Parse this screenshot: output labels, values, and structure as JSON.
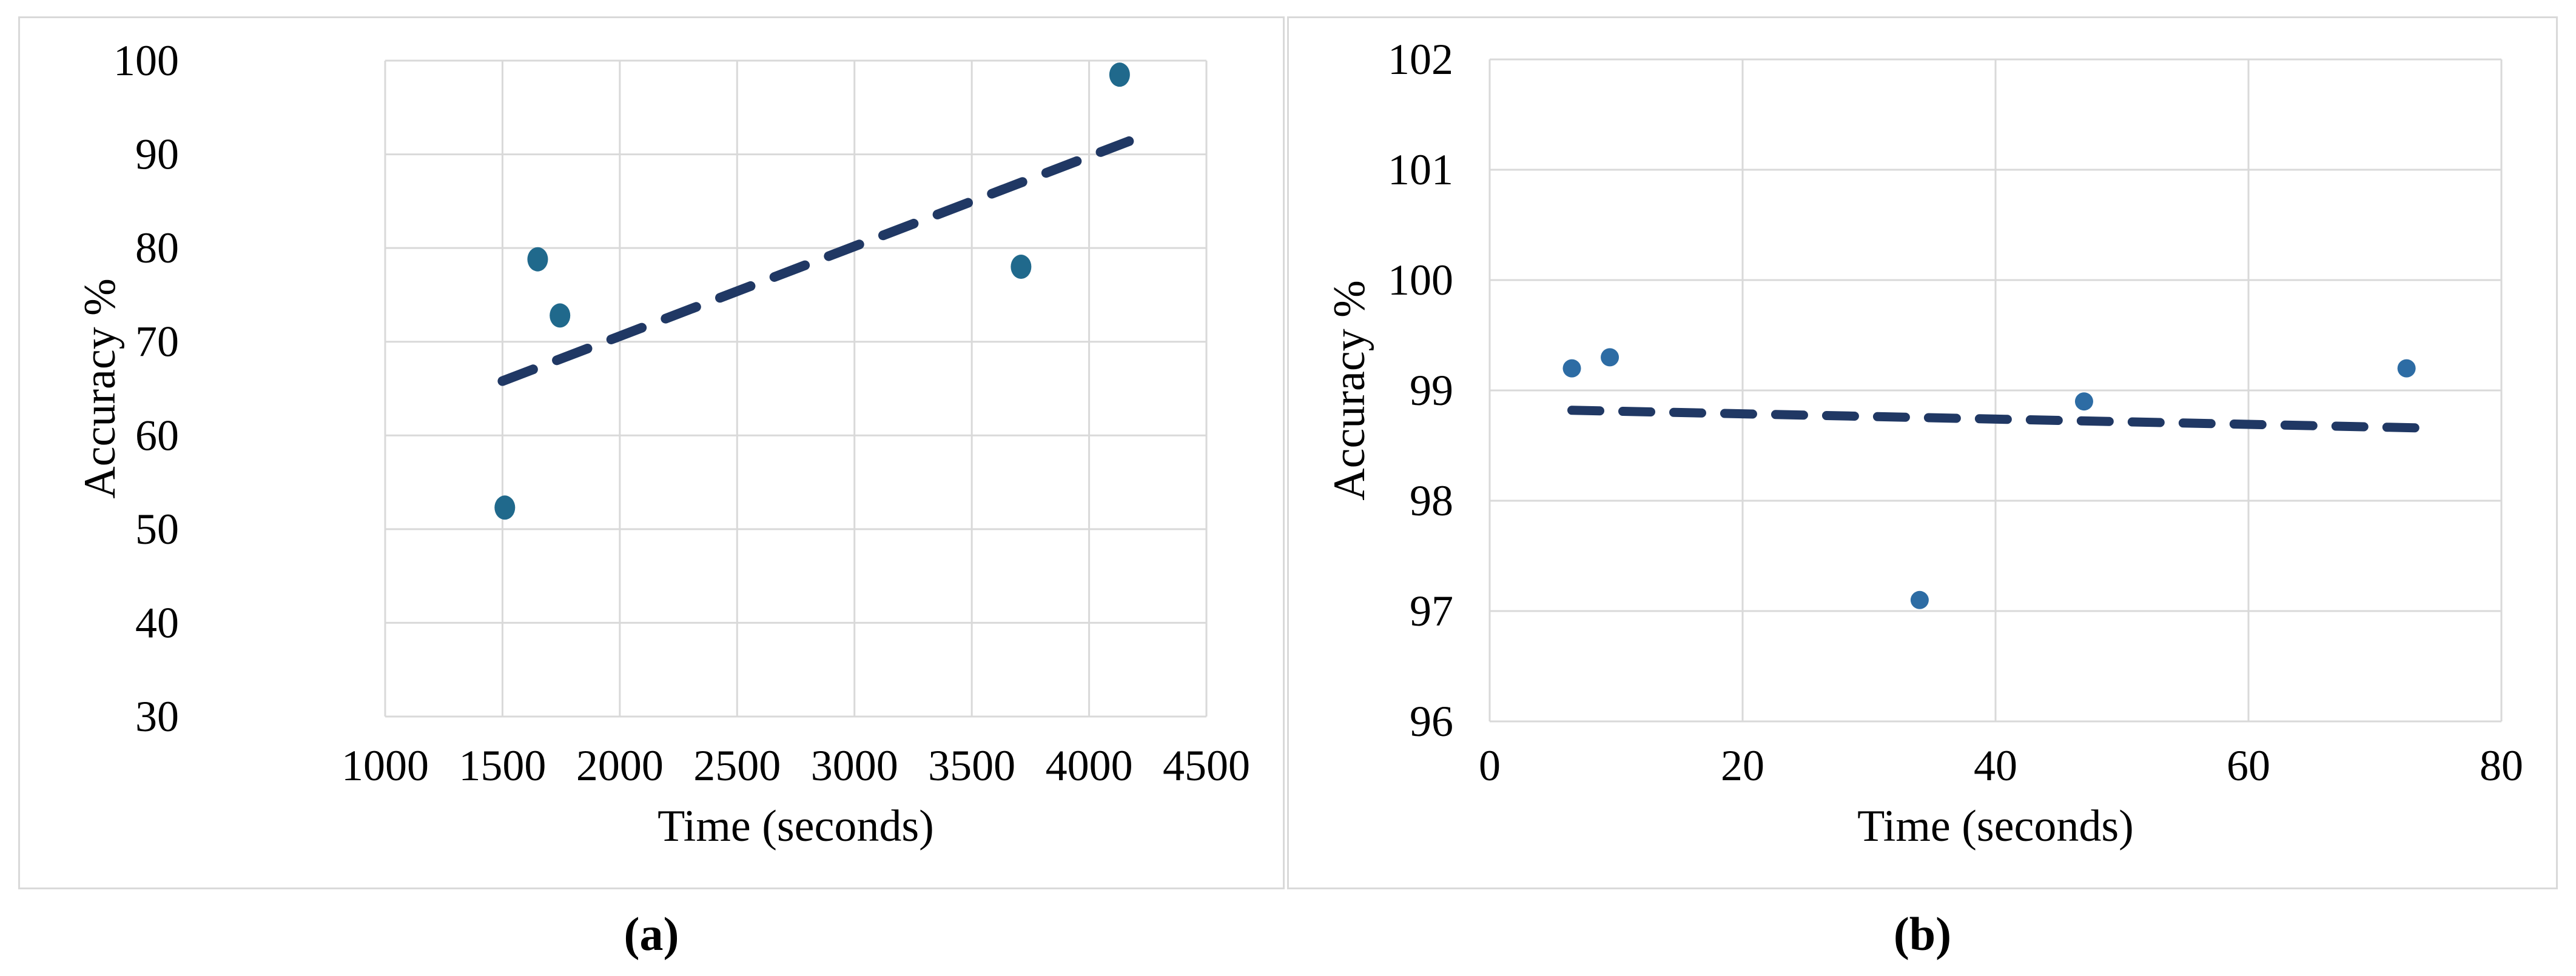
{
  "figure": {
    "background": "#ffffff",
    "panel_border_color": "#d9d9d9",
    "grid_color": "#d9d9d9",
    "text_color": "#000000",
    "caption_a": "(a)",
    "caption_b": "(b)"
  },
  "chart_data": [
    {
      "id": "a",
      "type": "scatter",
      "caption": "(a)",
      "title": "",
      "xlabel": "Time (seconds)",
      "ylabel": "Accuracy %",
      "xlim": [
        1000,
        4500
      ],
      "ylim": [
        30,
        100
      ],
      "xticks": [
        1000,
        1500,
        2000,
        2500,
        3000,
        3500,
        4000,
        4500
      ],
      "yticks": [
        30,
        40,
        50,
        60,
        70,
        80,
        90,
        100
      ],
      "grid": true,
      "legend": "none",
      "points": [
        [
          1510,
          52.3
        ],
        [
          1650,
          78.8
        ],
        [
          1745,
          72.8
        ],
        [
          3710,
          78.0
        ],
        [
          4130,
          98.5
        ]
      ],
      "trendline": {
        "style": "dashed",
        "x1": 1500,
        "y1": 65.8,
        "x2": 4170,
        "y2": 91.4
      },
      "marker_color": "#20698c",
      "trend_color": "#203864"
    },
    {
      "id": "b",
      "type": "scatter",
      "caption": "(b)",
      "title": "",
      "xlabel": "Time (seconds)",
      "ylabel": "Accuracy %",
      "xlim": [
        0,
        80
      ],
      "ylim": [
        96,
        102
      ],
      "xticks": [
        0,
        20,
        40,
        60,
        80
      ],
      "yticks": [
        96,
        97,
        98,
        99,
        100,
        101,
        102
      ],
      "grid": true,
      "legend": "none",
      "points": [
        [
          6.5,
          99.2
        ],
        [
          9.5,
          99.3
        ],
        [
          34,
          97.1
        ],
        [
          47,
          98.9
        ],
        [
          72.5,
          99.2
        ]
      ],
      "trendline": {
        "style": "dashed",
        "x1": 6.5,
        "y1": 98.82,
        "x2": 73.5,
        "y2": 98.66
      },
      "marker_color": "#2d6ca4",
      "trend_color": "#203864"
    }
  ]
}
